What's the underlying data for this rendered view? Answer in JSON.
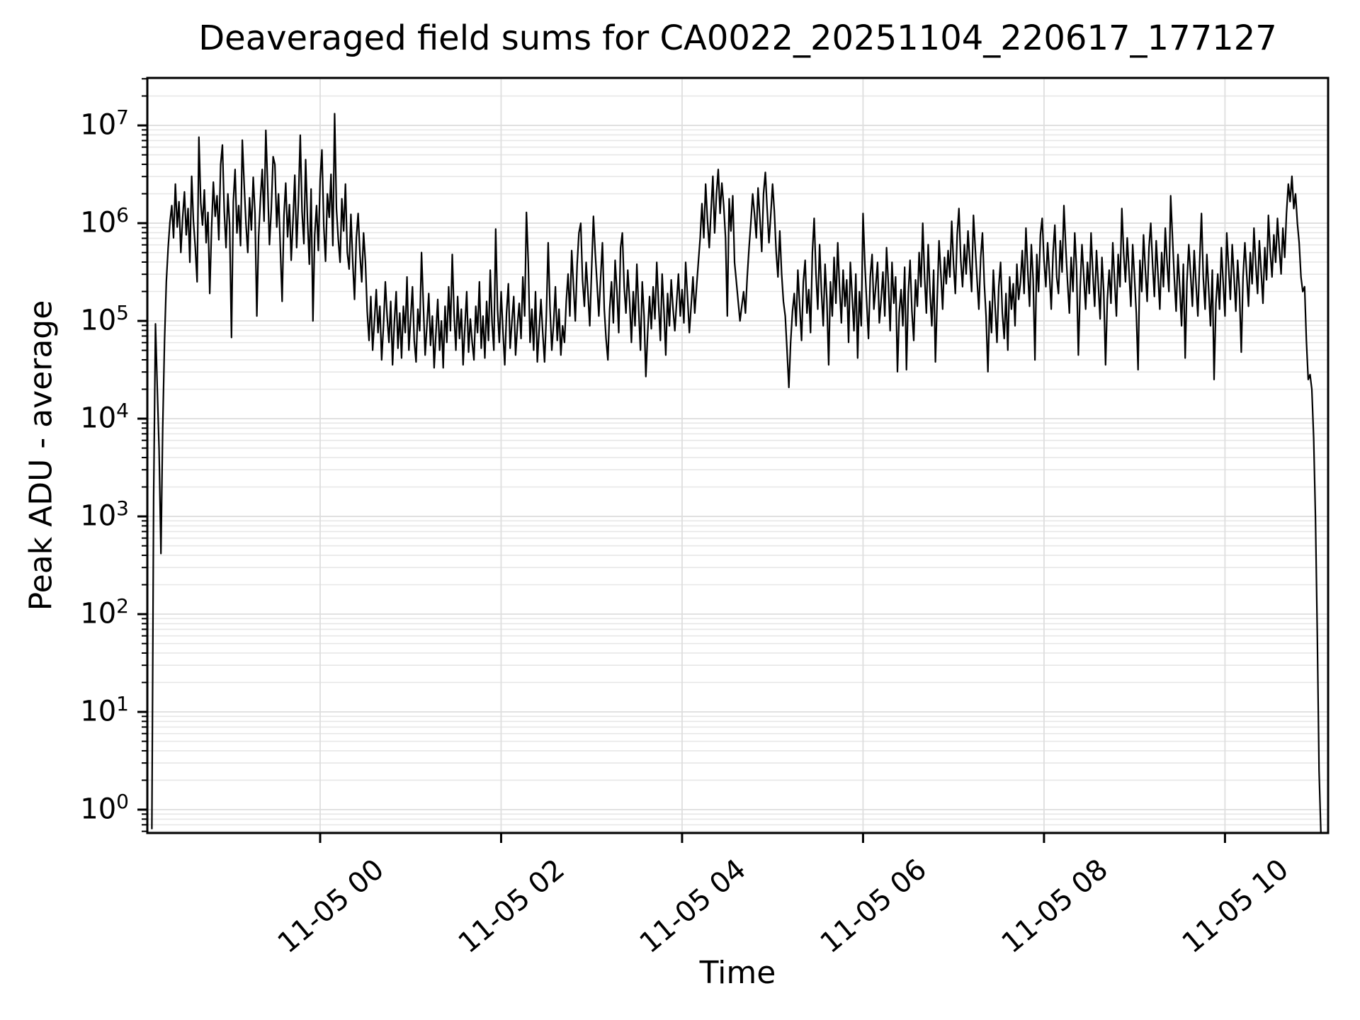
{
  "title": "Deaveraged field sums for CA0022_20251104_220617_177127",
  "axes": {
    "xlabel": "Time",
    "ylabel": "Peak ADU - average"
  },
  "style": {
    "line_color": "#000000",
    "background": "#ffffff",
    "grid_major_color": "#dedede",
    "grid_minor_color": "#e7e7e7",
    "spine_color": "#000000"
  },
  "chart_data": {
    "type": "line",
    "title": "Deaveraged field sums for CA0022_20251104_220617_177127",
    "xlabel": "Time",
    "ylabel": "Peak ADU - average",
    "grid": true,
    "x_axis": {
      "unit": "hours since 2025-11-04 22:00",
      "range": [
        0.09,
        13.14
      ],
      "tick_hours": [
        2,
        4,
        6,
        8,
        10,
        12
      ],
      "tick_labels": [
        "11-05 00",
        "11-05 02",
        "11-05 04",
        "11-05 06",
        "11-05 08",
        "11-05 10"
      ]
    },
    "y_axis": {
      "scale": "log",
      "range_log10": [
        -0.239,
        7.486
      ],
      "tick_exponents": [
        0,
        1,
        2,
        3,
        4,
        5,
        6,
        7
      ],
      "minor_tick_mantissas": [
        2,
        3,
        4,
        5,
        6,
        7,
        8,
        9
      ]
    },
    "series": [
      {
        "name": "deaveraged field sum",
        "color": "#000000",
        "t_start_hours": 0.14,
        "dt_hours": 0.02,
        "encoding": "log10_of_value_times_100",
        "log10_values_x100": [
          -20,
          320,
          497,
          430,
          368,
          262,
          390,
          480,
          540,
          575,
          601,
          618,
          585,
          640,
          596,
          622,
          570,
          605,
          632,
          588,
          615,
          560,
          648,
          602,
          575,
          540,
          688,
          621,
          598,
          634,
          580,
          611,
          528,
          595,
          642,
          607,
          628,
          583,
          660,
          680,
          612,
          575,
          630,
          598,
          483,
          622,
          655,
          590,
          618,
          577,
          685,
          640,
          600,
          570,
          626,
          593,
          647,
          610,
          505,
          586,
          625,
          655,
          602,
          695,
          638,
          578,
          614,
          668,
          660,
          596,
          630,
          574,
          520,
          608,
          641,
          586,
          619,
          562,
          603,
          649,
          575,
          622,
          690,
          612,
          579,
          665,
          604,
          558,
          635,
          500,
          588,
          618,
          572,
          645,
          675,
          597,
          561,
          630,
          606,
          650,
          577,
          712,
          615,
          584,
          560,
          625,
          592,
          640,
          570,
          553,
          609,
          560,
          522,
          585,
          610,
          568,
          540,
          590,
          560,
          510,
          480,
          525,
          470,
          500,
          532,
          488,
          515,
          460,
          495,
          540,
          505,
          478,
          520,
          455,
          498,
          530,
          472,
          508,
          462,
          515,
          488,
          545,
          470,
          502,
          535,
          480,
          458,
          512,
          490,
          570,
          518,
          465,
          495,
          528,
          475,
          505,
          452,
          488,
          522,
          470,
          500,
          452,
          515,
          478,
          535,
          490,
          568,
          508,
          470,
          525,
          482,
          512,
          455,
          495,
          530,
          468,
          502,
          478,
          460,
          515,
          488,
          540,
          472,
          505,
          462,
          520,
          480,
          552,
          498,
          470,
          594,
          512,
          478,
          530,
          490,
          455,
          508,
          538,
          472,
          500,
          525,
          465,
          495,
          518,
          482,
          545,
          505,
          611,
          560,
          478,
          512,
          470,
          530,
          458,
          490,
          522,
          488,
          458,
          505,
          580,
          515,
          470,
          498,
          535,
          480,
          512,
          465,
          495,
          478,
          520,
          548,
          505,
          572,
          535,
          500,
          558,
          590,
          600,
          542,
          515,
          560,
          528,
          495,
          552,
          607,
          570,
          538,
          505,
          545,
          580,
          512,
          482,
          460,
          512,
          540,
          498,
          562,
          530,
          488,
          575,
          590,
          535,
          508,
          552,
          520,
          478,
          530,
          495,
          558,
          512,
          470,
          540,
          505,
          443,
          488,
          525,
          492,
          535,
          502,
          560,
          518,
          480,
          548,
          510,
          465,
          528,
          495,
          542,
          512,
          490,
          520,
          548,
          505,
          532,
          498,
          560,
          525,
          488,
          515,
          545,
          508,
          535,
          560,
          585,
          620,
          585,
          640,
          604,
          575,
          612,
          648,
          590,
          630,
          655,
          610,
          641,
          618,
          585,
          505,
          625,
          592,
          628,
          560,
          540,
          520,
          500,
          515,
          530,
          508,
          545,
          575,
          600,
          630,
          610,
          585,
          636,
          605,
          571,
          630,
          652,
          615,
          580,
          608,
          640,
          612,
          570,
          545,
          592,
          548,
          520,
          505,
          470,
          432,
          478,
          510,
          528,
          495,
          552,
          515,
          480,
          540,
          562,
          508,
          532,
          488,
          570,
          605,
          548,
          512,
          578,
          530,
          495,
          558,
          522,
          455,
          540,
          505,
          565,
          518,
          580,
          535,
          498,
          552,
          515,
          542,
          478,
          560,
          525,
          490,
          548,
          462,
          530,
          495,
          610,
          558,
          520,
          482,
          545,
          568,
          512,
          535,
          560,
          498,
          522,
          550,
          505,
          575,
          538,
          490,
          560,
          518,
          545,
          448,
          508,
          532,
          495,
          555,
          450,
          528,
          562,
          510,
          480,
          542,
          515,
          570,
          535,
          600,
          545,
          508,
          578,
          530,
          495,
          552,
          458,
          525,
          582,
          548,
          512,
          565,
          538,
          572,
          545,
          602,
          558,
          528,
          588,
          615,
          562,
          535,
          578,
          548,
          592,
          560,
          530,
          608,
          575,
          542,
          512,
          565,
          590,
          538,
          505,
          448,
          520,
          488,
          552,
          515,
          478,
          535,
          560,
          508,
          482,
          528,
          470,
          545,
          512,
          538,
          495,
          558,
          522,
          540,
          572,
          528,
          595,
          552,
          515,
          578,
          542,
          460,
          568,
          530,
          588,
          605,
          562,
          535,
          580,
          548,
          512,
          570,
          598,
          545,
          528,
          582,
          550,
          618,
          575,
          540,
          508,
          565,
          530,
          590,
          552,
          465,
          535,
          578,
          545,
          512,
          560,
          528,
          590,
          548,
          515,
          572,
          538,
          502,
          565,
          530,
          455,
          522,
          552,
          518,
          580,
          542,
          505,
          568,
          535,
          615,
          570,
          540,
          585,
          550,
          515,
          578,
          545,
          508,
          450,
          562,
          530,
          588,
          552,
          520,
          575,
          600,
          558,
          525,
          582,
          548,
          512,
          570,
          535,
          595,
          560,
          530,
          628,
          585,
          545,
          510,
          568,
          535,
          495,
          558,
          462,
          540,
          578,
          548,
          515,
          572,
          538,
          505,
          560,
          610,
          545,
          512,
          568,
          532,
          495,
          552,
          440,
          518,
          548,
          512,
          575,
          540,
          505,
          590,
          555,
          522,
          578,
          545,
          510,
          562,
          530,
          468,
          545,
          580,
          548,
          515,
          570,
          538,
          595,
          558,
          528,
          582,
          550,
          518,
          575,
          542,
          608,
          572,
          545,
          588,
          560,
          605,
          575,
          548,
          595,
          565,
          610,
          640,
          622,
          648,
          615,
          630,
          600,
          580,
          545,
          530,
          535,
          480,
          440,
          445,
          430,
          380,
          300,
          180,
          40,
          -24
        ]
      }
    ]
  }
}
